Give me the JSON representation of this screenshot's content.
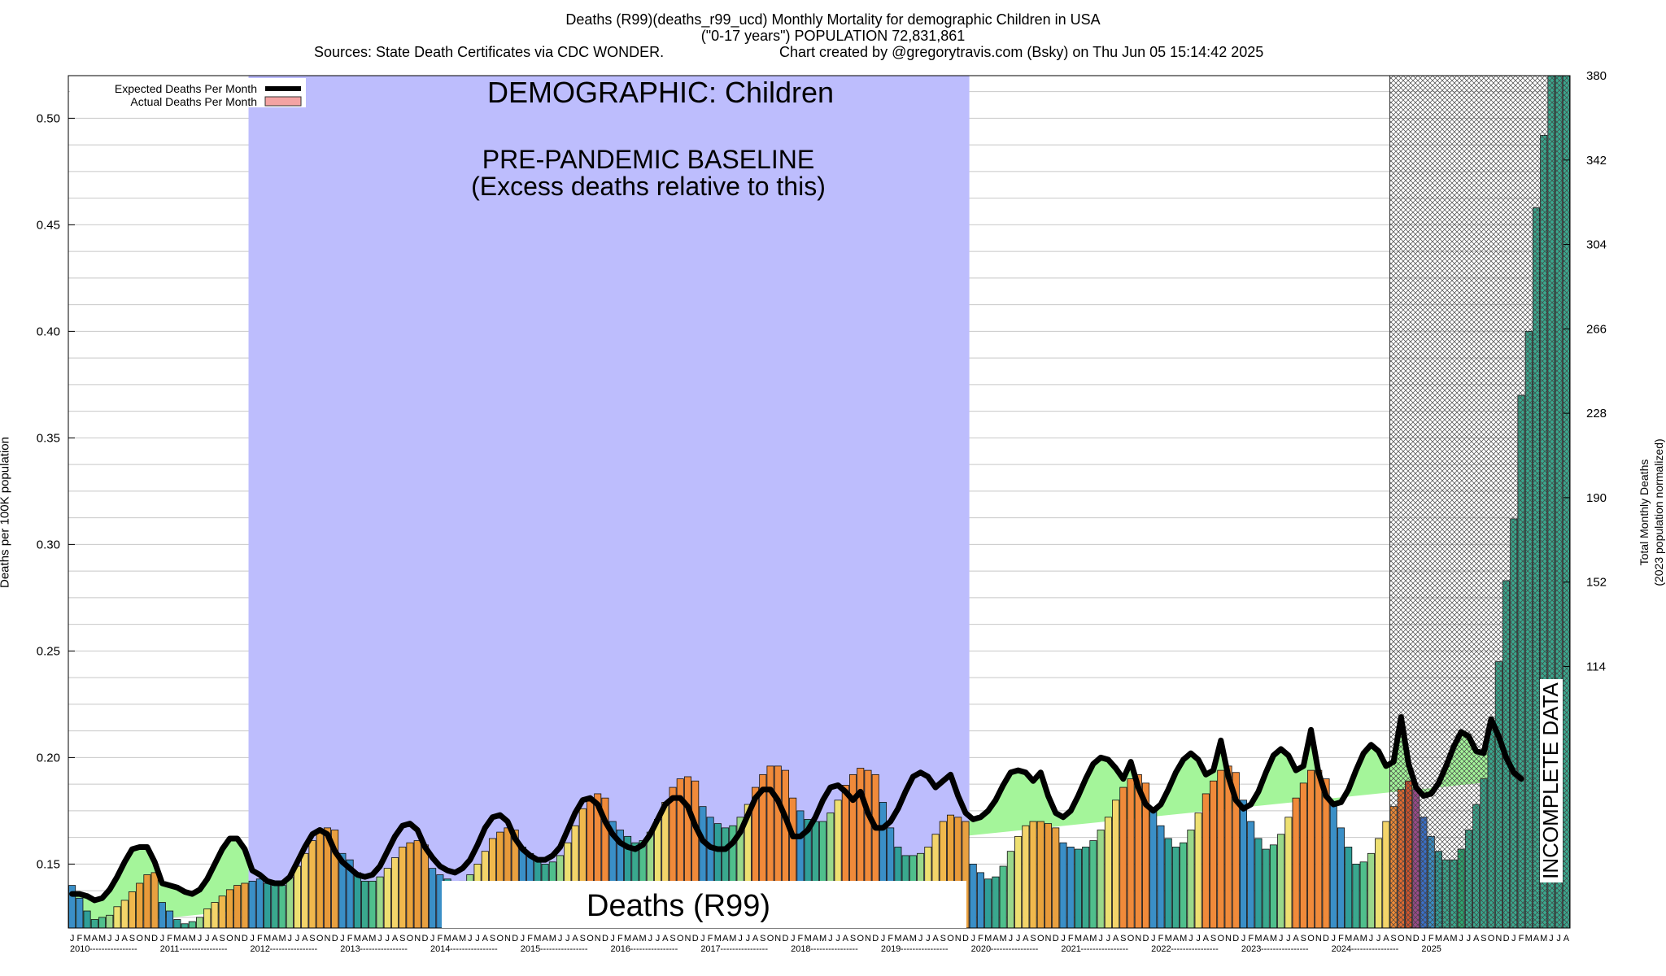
{
  "chart_data": {
    "type": "bar",
    "title_line1": "Deaths (R99)(deaths_r99_ucd) Monthly Mortality for demographic Children in USA",
    "title_line2": "(\"0-17 years\") POPULATION 72,831,861",
    "sources": "Sources: State Death Certificates via CDC WONDER.",
    "credit": "Chart created by @gregorytravis.com (Bsky) on Thu Jun 05 15:14:42 2025",
    "ylabel_left": "Deaths per 100K population",
    "ylabel_right_line1": "Total Monthly Deaths",
    "ylabel_right_line2": "(2023 population normalized)",
    "ylim": [
      0.12,
      0.52
    ],
    "yticks_left": [
      "0.15",
      "0.20",
      "0.25",
      "0.30",
      "0.35",
      "0.40",
      "0.45",
      "0.50"
    ],
    "yticks_left_values": [
      0.15,
      0.2,
      0.25,
      0.3,
      0.35,
      0.4,
      0.45,
      0.5
    ],
    "yticks_right": [
      "114",
      "152",
      "190",
      "228",
      "266",
      "304",
      "342",
      "380"
    ],
    "yticks_right_values": [
      114,
      152,
      190,
      228,
      266,
      304,
      342,
      380
    ],
    "legend": [
      {
        "label": "Expected Deaths Per Month",
        "color": "#000000"
      },
      {
        "label": "Actual Deaths Per Month",
        "color": "#f4a3a3"
      }
    ],
    "legend_position": "top-left",
    "demographic_label": "DEMOGRAPHIC: Children",
    "baseline_label_1": "PRE-PANDEMIC BASELINE",
    "baseline_label_2": "(Excess deaths relative to this)",
    "baseline_span": [
      "2012-01",
      "2019-12"
    ],
    "incomplete_label": "INCOMPLETE DATA",
    "incomplete_from": "2024-09",
    "cause_label": "Deaths (R99)",
    "month_letters": [
      "J",
      "F",
      "M",
      "A",
      "M",
      "J",
      "J",
      "A",
      "S",
      "O",
      "N",
      "D"
    ],
    "years": [
      "2010",
      "2011",
      "2012",
      "2013",
      "2014",
      "2015",
      "2016",
      "2017",
      "2018",
      "2019",
      "2020",
      "2021",
      "2022",
      "2023",
      "2024",
      "2025"
    ],
    "start": "2010-01",
    "actual": [
      0.14,
      0.134,
      0.128,
      0.124,
      0.125,
      0.126,
      0.13,
      0.133,
      0.137,
      0.141,
      0.145,
      0.146,
      0.132,
      0.128,
      0.124,
      0.122,
      0.123,
      0.125,
      0.129,
      0.132,
      0.135,
      0.138,
      0.14,
      0.141,
      0.142,
      0.143,
      0.141,
      0.14,
      0.14,
      0.144,
      0.149,
      0.155,
      0.161,
      0.165,
      0.167,
      0.166,
      0.155,
      0.152,
      0.146,
      0.142,
      0.142,
      0.144,
      0.148,
      0.153,
      0.158,
      0.16,
      0.161,
      0.159,
      0.148,
      0.145,
      0.143,
      0.141,
      0.142,
      0.145,
      0.15,
      0.156,
      0.162,
      0.165,
      0.167,
      0.166,
      0.158,
      0.155,
      0.152,
      0.15,
      0.151,
      0.154,
      0.16,
      0.168,
      0.176,
      0.181,
      0.183,
      0.181,
      0.17,
      0.166,
      0.163,
      0.16,
      0.161,
      0.165,
      0.171,
      0.179,
      0.186,
      0.19,
      0.191,
      0.189,
      0.177,
      0.172,
      0.169,
      0.167,
      0.168,
      0.172,
      0.178,
      0.186,
      0.192,
      0.196,
      0.196,
      0.194,
      0.181,
      0.175,
      0.171,
      0.17,
      0.17,
      0.174,
      0.18,
      0.187,
      0.192,
      0.195,
      0.194,
      0.192,
      0.179,
      0.167,
      0.158,
      0.154,
      0.154,
      0.155,
      0.158,
      0.164,
      0.17,
      0.173,
      0.172,
      0.17,
      0.15,
      0.146,
      0.143,
      0.144,
      0.149,
      0.156,
      0.163,
      0.168,
      0.17,
      0.17,
      0.169,
      0.167,
      0.16,
      0.158,
      0.157,
      0.158,
      0.161,
      0.166,
      0.172,
      0.18,
      0.186,
      0.19,
      0.192,
      0.188,
      0.175,
      0.168,
      0.162,
      0.158,
      0.16,
      0.166,
      0.174,
      0.183,
      0.189,
      0.194,
      0.196,
      0.193,
      0.18,
      0.17,
      0.162,
      0.157,
      0.159,
      0.164,
      0.172,
      0.181,
      0.188,
      0.194,
      0.194,
      0.19,
      0.178,
      0.167,
      0.158,
      0.15,
      0.151,
      0.155,
      0.162,
      0.17,
      0.177,
      0.185,
      0.189,
      0.185,
      0.172,
      0.163,
      0.156,
      0.152,
      0.152,
      0.157,
      0.166,
      0.178,
      0.19,
      0.213,
      0.245,
      0.283,
      0.312,
      0.37,
      0.4,
      0.458,
      0.492,
      0.52,
      0.52,
      0.52
    ],
    "expected": [
      0.136,
      0.136,
      0.135,
      0.133,
      0.134,
      0.138,
      0.144,
      0.151,
      0.157,
      0.158,
      0.158,
      0.151,
      0.141,
      0.14,
      0.139,
      0.137,
      0.136,
      0.138,
      0.143,
      0.15,
      0.157,
      0.162,
      0.162,
      0.157,
      0.147,
      0.145,
      0.142,
      0.141,
      0.141,
      0.144,
      0.151,
      0.158,
      0.164,
      0.166,
      0.164,
      0.156,
      0.151,
      0.148,
      0.145,
      0.144,
      0.145,
      0.149,
      0.156,
      0.163,
      0.168,
      0.169,
      0.166,
      0.158,
      0.153,
      0.149,
      0.147,
      0.146,
      0.148,
      0.152,
      0.159,
      0.167,
      0.172,
      0.173,
      0.17,
      0.162,
      0.157,
      0.154,
      0.152,
      0.152,
      0.154,
      0.158,
      0.166,
      0.174,
      0.18,
      0.181,
      0.178,
      0.17,
      0.164,
      0.16,
      0.158,
      0.157,
      0.159,
      0.164,
      0.171,
      0.178,
      0.181,
      0.181,
      0.177,
      0.168,
      0.161,
      0.158,
      0.157,
      0.157,
      0.16,
      0.165,
      0.173,
      0.181,
      0.185,
      0.185,
      0.18,
      0.172,
      0.163,
      0.163,
      0.166,
      0.172,
      0.18,
      0.186,
      0.187,
      0.184,
      0.18,
      0.184,
      0.174,
      0.167,
      0.167,
      0.17,
      0.176,
      0.184,
      0.191,
      0.193,
      0.191,
      0.186,
      0.189,
      0.192,
      0.182,
      0.174,
      0.171,
      0.172,
      0.175,
      0.18,
      0.187,
      0.193,
      0.194,
      0.193,
      0.189,
      0.193,
      0.182,
      0.174,
      0.172,
      0.175,
      0.182,
      0.19,
      0.197,
      0.2,
      0.199,
      0.195,
      0.19,
      0.198,
      0.186,
      0.178,
      0.175,
      0.178,
      0.185,
      0.193,
      0.199,
      0.202,
      0.199,
      0.192,
      0.194,
      0.208,
      0.191,
      0.18,
      0.176,
      0.178,
      0.184,
      0.193,
      0.201,
      0.204,
      0.201,
      0.194,
      0.196,
      0.213,
      0.193,
      0.182,
      0.178,
      0.179,
      0.185,
      0.194,
      0.202,
      0.206,
      0.203,
      0.196,
      0.198,
      0.219,
      0.197,
      0.186,
      0.182,
      0.183,
      0.188,
      0.196,
      0.205,
      0.212,
      0.21,
      0.203,
      0.202,
      0.218,
      0.21,
      0.2,
      0.193,
      0.19
    ]
  }
}
